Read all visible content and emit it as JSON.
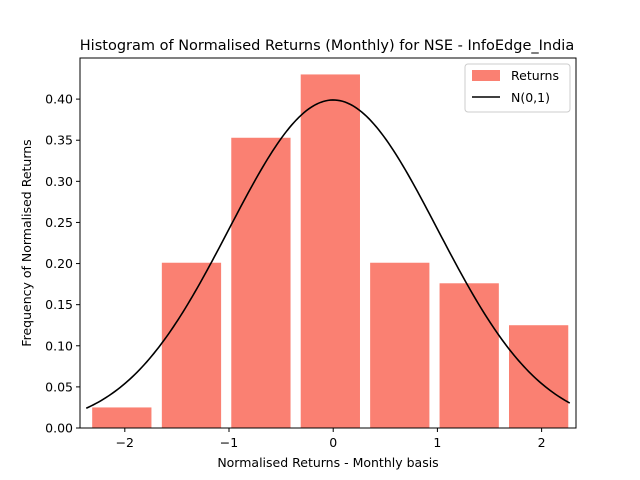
{
  "chart_data": {
    "type": "bar",
    "title": "Histogram of Normalised Returns (Monthly) for NSE - InfoEdge_India",
    "xlabel": "Normalised Returns - Monthly basis",
    "ylabel": "Frequency of Normalised Returns",
    "xlim": [
      -2.43,
      2.33
    ],
    "ylim": [
      0,
      0.45
    ],
    "xticks": [
      -2,
      -1,
      0,
      1,
      2
    ],
    "xtick_labels": [
      "−2",
      "−1",
      "0",
      "1",
      "2"
    ],
    "yticks": [
      0,
      0.05,
      0.1,
      0.15,
      0.2,
      0.25,
      0.3,
      0.35,
      0.4
    ],
    "ytick_labels": [
      "0.00",
      "0.05",
      "0.10",
      "0.15",
      "0.20",
      "0.25",
      "0.30",
      "0.35",
      "0.40"
    ],
    "bar_color": "#fa8072",
    "bar_width": 0.5688,
    "bars": [
      {
        "x": -2.0287,
        "value": 0.025
      },
      {
        "x": -1.3602,
        "value": 0.201
      },
      {
        "x": -0.6939,
        "value": 0.353
      },
      {
        "x": -0.0275,
        "value": 0.43
      },
      {
        "x": 0.6388,
        "value": 0.201
      },
      {
        "x": 1.3051,
        "value": 0.176
      },
      {
        "x": 1.9714,
        "value": 0.125
      }
    ],
    "series": [
      {
        "name": "Returns",
        "kind": "bar"
      },
      {
        "name": "N(0,1)",
        "kind": "line",
        "color": "#000000",
        "x_range": [
          -2.37,
          2.27
        ],
        "function": "normal_pdf"
      }
    ],
    "legend_position": "top-right",
    "grid": false
  }
}
